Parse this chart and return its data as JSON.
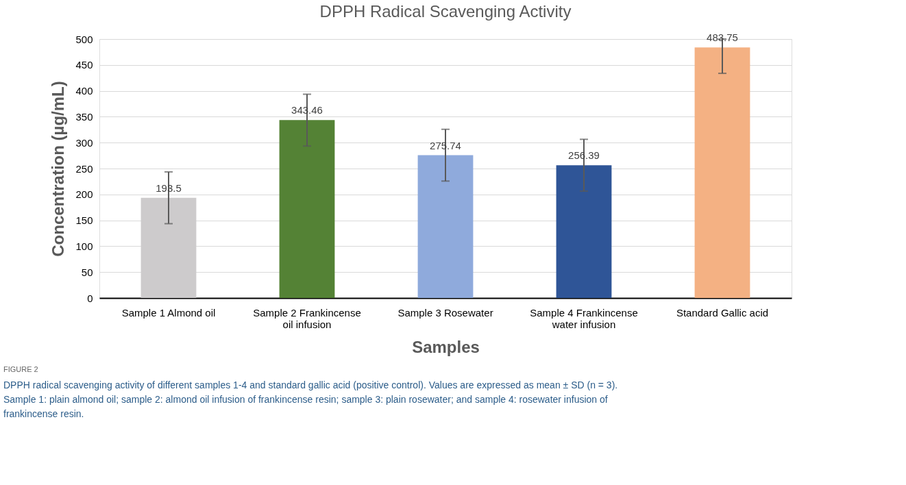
{
  "chart_data": {
    "type": "bar",
    "title": "DPPH Radical Scavenging Activity",
    "xlabel": "Samples",
    "ylabel": "Concentration (µg/mL)",
    "categories": [
      "Sample 1 Almond oil",
      "Sample 2 Frankincense oil infusion",
      "Sample 3 Rosewater",
      "Sample 4 Frankincense water infusion",
      "Standard Gallic acid"
    ],
    "values": [
      193.5,
      343.46,
      275.74,
      256.39,
      483.75
    ],
    "colors": [
      "#cdcbcc",
      "#548235",
      "#8faadc",
      "#2f5597",
      "#f4b183"
    ],
    "errors": [
      50,
      50,
      50,
      50,
      [
        433.75,
        500
      ]
    ],
    "data_labels": true,
    "ylim": [
      0,
      500
    ],
    "yticks": [
      0,
      50,
      100,
      150,
      200,
      250,
      300,
      350,
      400,
      450,
      500
    ],
    "grid": "y",
    "annotations": [
      "FIGURE 2",
      "DPPH radical scavenging activity of different samples 1-4 and standard gallic acid (positive control). Values are expressed as mean ± SD (n = 3). Sample 1: plain almond oil; sample 2: almond oil infusion of frankincense resin; sample 3: plain rosewater; and sample 4: rosewater infusion of frankincense resin."
    ]
  }
}
